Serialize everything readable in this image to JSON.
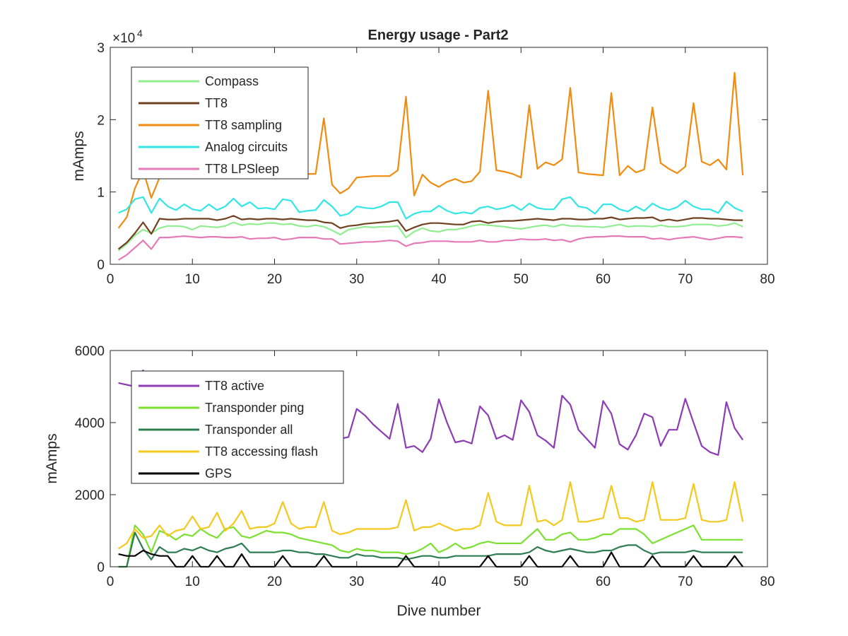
{
  "figure": {
    "title": "Energy usage - Part2"
  },
  "chart_data": [
    {
      "type": "line",
      "title": "Energy usage - Part2",
      "xlabel": "",
      "ylabel": "mAmps",
      "xlim": [
        0,
        80
      ],
      "ylim": [
        0,
        30000
      ],
      "xticks": [
        0,
        10,
        20,
        30,
        40,
        50,
        60,
        70,
        80
      ],
      "yticks": [
        0,
        10000,
        20000,
        30000
      ],
      "ytick_labels": [
        "0",
        "1",
        "2",
        "3"
      ],
      "y_exponent_prefix": "×10",
      "y_exponent_power": "4",
      "grid": false,
      "legend_position": "top-left",
      "x": [
        1,
        2,
        3,
        4,
        5,
        6,
        7,
        8,
        9,
        10,
        11,
        12,
        13,
        14,
        15,
        16,
        17,
        18,
        19,
        20,
        21,
        22,
        23,
        24,
        25,
        26,
        27,
        28,
        29,
        30,
        31,
        32,
        33,
        34,
        35,
        36,
        37,
        38,
        39,
        40,
        41,
        42,
        43,
        44,
        45,
        46,
        47,
        48,
        49,
        50,
        51,
        52,
        53,
        54,
        55,
        56,
        57,
        58,
        59,
        60,
        61,
        62,
        63,
        64,
        65,
        66,
        67,
        68,
        69,
        70,
        71,
        72,
        73,
        74,
        75,
        76,
        77
      ],
      "series": [
        {
          "name": "Compass",
          "color": "#90EE90",
          "values": [
            1900,
            2800,
            4000,
            4800,
            4300,
            5000,
            5300,
            5300,
            5200,
            4800,
            5300,
            5200,
            5100,
            5300,
            5800,
            5400,
            5600,
            5500,
            5700,
            5700,
            5500,
            5600,
            5300,
            5200,
            5400,
            5200,
            4700,
            4100,
            4800,
            5000,
            5200,
            5100,
            5200,
            5200,
            5300,
            3700,
            4500,
            5000,
            4600,
            4500,
            4800,
            4800,
            5000,
            5300,
            5500,
            5400,
            5300,
            5200,
            5000,
            4900,
            5100,
            5300,
            5400,
            5200,
            5500,
            5300,
            5300,
            5200,
            5200,
            5100,
            5300,
            5500,
            5200,
            5300,
            5300,
            5200,
            5400,
            5200,
            5200,
            5300,
            5500,
            5500,
            5500,
            5300,
            5400,
            5700,
            5200
          ]
        },
        {
          "name": "TT8",
          "color": "#704020",
          "values": [
            2100,
            3000,
            4300,
            5800,
            4200,
            6300,
            6200,
            6200,
            6300,
            6300,
            6300,
            6300,
            6100,
            6300,
            6700,
            6200,
            6300,
            6200,
            6300,
            6300,
            6200,
            6300,
            6200,
            6100,
            6100,
            5800,
            5700,
            5000,
            5300,
            5400,
            5600,
            5700,
            5800,
            5900,
            6100,
            4600,
            5100,
            5500,
            5700,
            5700,
            5600,
            5500,
            5500,
            5900,
            6000,
            5700,
            5900,
            6000,
            6000,
            6100,
            6200,
            6300,
            6200,
            6100,
            6300,
            6300,
            6200,
            6200,
            6300,
            6300,
            6500,
            6200,
            6300,
            6400,
            6400,
            6500,
            6000,
            6200,
            6000,
            6200,
            6400,
            6400,
            6300,
            6300,
            6200,
            6100,
            6100
          ]
        },
        {
          "name": "TT8 sampling",
          "color": "#F08C10",
          "values": [
            5000,
            6500,
            10500,
            13000,
            9200,
            12000,
            12200,
            12100,
            12200,
            12300,
            12200,
            12300,
            12400,
            12400,
            12500,
            12500,
            12500,
            12500,
            12500,
            12600,
            12400,
            12500,
            12400,
            12500,
            12500,
            20200,
            11000,
            9800,
            10500,
            12000,
            12100,
            12200,
            12200,
            12200,
            13000,
            23200,
            9500,
            12400,
            11300,
            10700,
            11400,
            11800,
            11300,
            11500,
            12800,
            24000,
            13000,
            12800,
            12500,
            12000,
            22000,
            13200,
            14100,
            13700,
            14500,
            24400,
            12700,
            12500,
            12400,
            12300,
            23700,
            12300,
            13600,
            12700,
            13100,
            21700,
            14000,
            13200,
            12600,
            13500,
            22300,
            14200,
            13700,
            14500,
            13100,
            26500,
            12300
          ]
        },
        {
          "name": "Analog circuits",
          "color": "#33E6E6",
          "values": [
            7100,
            7600,
            9000,
            9300,
            7100,
            9100,
            8000,
            7500,
            8300,
            7600,
            7400,
            8300,
            7500,
            8000,
            9100,
            8000,
            8600,
            7700,
            7800,
            7600,
            9000,
            8800,
            7200,
            7400,
            7500,
            8900,
            8000,
            6700,
            7000,
            8000,
            7800,
            7700,
            8000,
            8600,
            8600,
            6300,
            7000,
            7300,
            7300,
            8100,
            7400,
            7000,
            7200,
            7000,
            7800,
            8000,
            7600,
            7800,
            8200,
            7500,
            8400,
            7800,
            7600,
            7600,
            9000,
            9300,
            8000,
            7800,
            7000,
            8300,
            8300,
            7600,
            7300,
            8000,
            7400,
            8400,
            7800,
            7500,
            7900,
            8800,
            8000,
            7600,
            7600,
            7100,
            8700,
            7800,
            7300
          ]
        },
        {
          "name": "TT8 LPSleep",
          "color": "#E67AB8",
          "values": [
            600,
            1300,
            2300,
            3300,
            2100,
            3700,
            3700,
            3800,
            3900,
            3800,
            3700,
            3800,
            3800,
            3700,
            3700,
            3800,
            3500,
            3600,
            3600,
            3700,
            3400,
            3500,
            3700,
            3700,
            3700,
            3500,
            3500,
            2800,
            2900,
            3000,
            3100,
            3100,
            3200,
            3300,
            3200,
            2500,
            2900,
            3000,
            3200,
            3200,
            3200,
            3100,
            3100,
            3100,
            3300,
            3100,
            3100,
            3300,
            3300,
            3500,
            3400,
            3400,
            3500,
            3300,
            3400,
            3100,
            3500,
            3700,
            3800,
            3800,
            3900,
            3900,
            3800,
            3800,
            3800,
            3500,
            3600,
            3400,
            3600,
            3700,
            3800,
            3600,
            3400,
            3600,
            3800,
            3800,
            3700
          ]
        }
      ]
    },
    {
      "type": "line",
      "title": "",
      "xlabel": "Dive number",
      "ylabel": "mAmps",
      "xlim": [
        0,
        80
      ],
      "ylim": [
        0,
        6000
      ],
      "xticks": [
        0,
        10,
        20,
        30,
        40,
        50,
        60,
        70,
        80
      ],
      "yticks": [
        0,
        2000,
        4000,
        6000
      ],
      "grid": false,
      "legend_position": "top-left",
      "x": [
        1,
        2,
        3,
        4,
        5,
        6,
        7,
        8,
        9,
        10,
        11,
        12,
        13,
        14,
        15,
        16,
        17,
        18,
        19,
        20,
        21,
        22,
        23,
        24,
        25,
        26,
        27,
        28,
        29,
        30,
        31,
        32,
        33,
        34,
        35,
        36,
        37,
        38,
        39,
        40,
        41,
        42,
        43,
        44,
        45,
        46,
        47,
        48,
        49,
        50,
        51,
        52,
        53,
        54,
        55,
        56,
        57,
        58,
        59,
        60,
        61,
        62,
        63,
        64,
        65,
        66,
        67,
        68,
        69,
        70,
        71,
        72,
        73,
        74,
        75,
        76,
        77
      ],
      "series": [
        {
          "name": "TT8 active",
          "color": "#8C3CB4",
          "values": [
            5100,
            5050,
            5000,
            5450,
            4900,
            4850,
            4800,
            4750,
            4800,
            4700,
            4650,
            4600,
            4550,
            4500,
            4400,
            4300,
            4200,
            4100,
            4000,
            3950,
            3900,
            3850,
            3800,
            3750,
            3700,
            3650,
            3600,
            3550,
            3600,
            4380,
            4200,
            3950,
            3750,
            3550,
            4520,
            3300,
            3350,
            3180,
            3550,
            4650,
            4000,
            3450,
            3500,
            3420,
            4450,
            4200,
            3550,
            3650,
            3520,
            4620,
            4300,
            3650,
            3500,
            3300,
            4750,
            4500,
            3800,
            3550,
            3300,
            4600,
            4250,
            3400,
            3250,
            3650,
            4250,
            4150,
            3350,
            3800,
            3800,
            4660,
            4000,
            3350,
            3180,
            3100,
            4570,
            3850,
            3520
          ]
        },
        {
          "name": "Transponder ping",
          "color": "#7CE030",
          "values": [
            0,
            0,
            1150,
            900,
            400,
            1000,
            900,
            750,
            900,
            850,
            1050,
            900,
            800,
            1050,
            1100,
            850,
            800,
            900,
            1000,
            950,
            950,
            900,
            800,
            750,
            700,
            650,
            600,
            450,
            400,
            500,
            450,
            450,
            400,
            400,
            400,
            350,
            400,
            500,
            650,
            400,
            500,
            650,
            500,
            550,
            650,
            700,
            650,
            650,
            650,
            650,
            850,
            1050,
            750,
            750,
            900,
            950,
            750,
            750,
            800,
            900,
            900,
            1050,
            1050,
            1050,
            900,
            650,
            750,
            850,
            950,
            1050,
            1150,
            750,
            750,
            750,
            750,
            750,
            750
          ]
        },
        {
          "name": "Transponder all",
          "color": "#2E7D52",
          "values": [
            0,
            0,
            950,
            500,
            200,
            550,
            400,
            400,
            500,
            450,
            550,
            450,
            400,
            500,
            550,
            650,
            400,
            400,
            400,
            400,
            450,
            450,
            400,
            400,
            350,
            350,
            300,
            250,
            250,
            350,
            300,
            300,
            250,
            250,
            250,
            200,
            250,
            300,
            300,
            250,
            250,
            300,
            300,
            300,
            300,
            300,
            350,
            350,
            350,
            350,
            400,
            550,
            450,
            400,
            450,
            500,
            450,
            400,
            400,
            450,
            450,
            550,
            600,
            600,
            450,
            350,
            400,
            400,
            400,
            400,
            450,
            400,
            400,
            400,
            400,
            400,
            400
          ]
        },
        {
          "name": "TT8 accessing flash",
          "color": "#F5C81E",
          "values": [
            500,
            650,
            1050,
            800,
            850,
            1150,
            850,
            1000,
            1050,
            1400,
            1050,
            1100,
            1500,
            1000,
            1200,
            1550,
            1050,
            1100,
            1100,
            1200,
            1800,
            1200,
            1050,
            1100,
            1100,
            1800,
            1000,
            900,
            950,
            1050,
            1050,
            1050,
            1050,
            1050,
            1100,
            1850,
            1000,
            1100,
            1100,
            1200,
            1100,
            1000,
            1050,
            1050,
            1150,
            2050,
            1250,
            1150,
            1150,
            1150,
            2250,
            1250,
            1300,
            1150,
            1300,
            2350,
            1250,
            1250,
            1300,
            1350,
            2250,
            1350,
            1350,
            1250,
            1300,
            2350,
            1300,
            1300,
            1300,
            1350,
            2300,
            1300,
            1250,
            1250,
            1300,
            2350,
            1250
          ]
        },
        {
          "name": "GPS",
          "color": "#000000",
          "values": [
            350,
            300,
            300,
            450,
            350,
            300,
            300,
            0,
            0,
            300,
            0,
            0,
            300,
            0,
            0,
            350,
            0,
            0,
            0,
            0,
            300,
            0,
            0,
            0,
            0,
            300,
            0,
            0,
            0,
            0,
            0,
            0,
            0,
            0,
            0,
            300,
            0,
            0,
            0,
            0,
            0,
            0,
            0,
            0,
            0,
            300,
            0,
            0,
            0,
            0,
            300,
            0,
            0,
            0,
            0,
            300,
            0,
            0,
            0,
            0,
            400,
            0,
            0,
            0,
            0,
            300,
            0,
            0,
            0,
            0,
            300,
            0,
            0,
            0,
            0,
            300,
            0
          ]
        }
      ]
    }
  ]
}
